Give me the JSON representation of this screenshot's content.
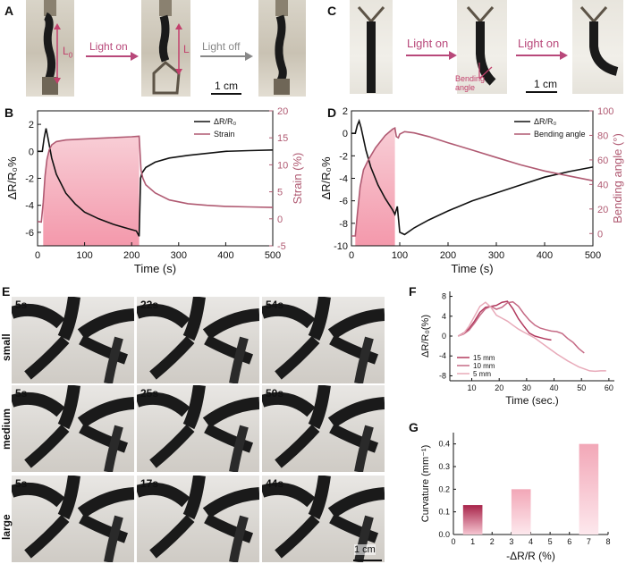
{
  "panels": {
    "A": {
      "label": "A",
      "length_label_initial": "L",
      "length_label_initial_sub": "0",
      "length_label_after": "L",
      "arrow_light_on": "Light on",
      "arrow_light_off": "Light off",
      "scale_bar": "1 cm"
    },
    "C": {
      "label": "C",
      "arrow_light_on_1": "Light on",
      "arrow_light_on_2": "Light on",
      "bending_label": "Bending angle",
      "scale_bar": "1 cm"
    },
    "E": {
      "label": "E",
      "rows": [
        {
          "size": "small",
          "times": [
            "5s",
            "22s",
            "54s"
          ]
        },
        {
          "size": "medium",
          "times": [
            "5s",
            "25s",
            "50s"
          ]
        },
        {
          "size": "large",
          "times": [
            "5s",
            "17s",
            "44s"
          ]
        }
      ],
      "scale_bar": "1 cm"
    },
    "B": {
      "label": "B"
    },
    "D": {
      "label": "D"
    },
    "F": {
      "label": "F"
    },
    "G": {
      "label": "G"
    }
  },
  "colors": {
    "pink_line": "#b05a72",
    "pink_fill": "#f4b8c4",
    "black": "#111111",
    "arrow_pink": "#b8487a",
    "arrow_gray": "#888888"
  },
  "chart_data": [
    {
      "id": "B",
      "type": "line",
      "xlabel": "Time (s)",
      "ylabel": "ΔR/R₀%",
      "y2label": "Strain (%)",
      "xlim": [
        0,
        500
      ],
      "ylim": [
        -7,
        3
      ],
      "y2lim": [
        -5,
        20
      ],
      "xticks": [
        "0",
        "100",
        "200",
        "300",
        "400",
        "500"
      ],
      "yticks": [
        "2",
        "0",
        "-2",
        "-4",
        "-6"
      ],
      "y2ticks": [
        "20",
        "15",
        "10",
        "5",
        "0",
        "-5"
      ],
      "light_on_interval": [
        12,
        218
      ],
      "legend": [
        "ΔR/R₀",
        "Strain"
      ],
      "series": [
        {
          "name": "ΔR/R₀",
          "axis": "left",
          "x": [
            0,
            10,
            14,
            18,
            22,
            30,
            40,
            60,
            80,
            100,
            130,
            160,
            190,
            210,
            216,
            219,
            222,
            230,
            250,
            280,
            320,
            360,
            400,
            450,
            500
          ],
          "y": [
            0,
            0,
            1.0,
            1.7,
            1.0,
            -0.5,
            -1.7,
            -3.1,
            -3.9,
            -4.5,
            -5.0,
            -5.4,
            -5.7,
            -5.9,
            -6.3,
            -2.0,
            -1.6,
            -1.2,
            -0.8,
            -0.5,
            -0.3,
            -0.15,
            0,
            0.05,
            0.1
          ]
        },
        {
          "name": "Strain",
          "axis": "right",
          "x": [
            0,
            8,
            12,
            16,
            20,
            25,
            30,
            40,
            60,
            100,
            150,
            200,
            216,
            220,
            224,
            230,
            250,
            280,
            320,
            360,
            400,
            450,
            500
          ],
          "y": [
            -0.5,
            -0.6,
            3,
            8,
            11,
            12.8,
            13.7,
            14.3,
            14.6,
            14.8,
            15.0,
            15.2,
            15.3,
            9,
            7.5,
            6.3,
            4.8,
            3.5,
            2.8,
            2.5,
            2.3,
            2.2,
            2.1
          ]
        }
      ]
    },
    {
      "id": "D",
      "type": "line",
      "xlabel": "Time (s)",
      "ylabel": "ΔR/R₀%",
      "y2label": "Bending angle (°)",
      "xlim": [
        0,
        500
      ],
      "ylim": [
        -10,
        2
      ],
      "y2lim": [
        -10,
        100
      ],
      "xticks": [
        "0",
        "100",
        "200",
        "300",
        "400",
        "500"
      ],
      "yticks": [
        "2",
        "0",
        "-2",
        "-4",
        "-6",
        "-8",
        "-10"
      ],
      "y2ticks": [
        "100",
        "80",
        "60",
        "40",
        "20",
        "0"
      ],
      "light_on_interval": [
        8,
        92
      ],
      "legend": [
        "ΔR/R₀",
        "Bending angle"
      ],
      "series": [
        {
          "name": "ΔR/R₀",
          "axis": "left",
          "x": [
            0,
            8,
            12,
            16,
            20,
            25,
            30,
            40,
            55,
            70,
            85,
            90,
            95,
            100,
            110,
            130,
            160,
            200,
            250,
            300,
            350,
            400,
            450,
            500
          ],
          "y": [
            0,
            0,
            0.7,
            1.1,
            0.5,
            -0.5,
            -1.5,
            -3.0,
            -4.6,
            -5.8,
            -6.8,
            -7.2,
            -6.5,
            -8.8,
            -9.0,
            -8.4,
            -7.7,
            -6.9,
            -6.0,
            -5.3,
            -4.6,
            -3.9,
            -3.4,
            -3.0
          ]
        },
        {
          "name": "Bending angle",
          "axis": "right",
          "x": [
            0,
            8,
            12,
            18,
            25,
            35,
            50,
            70,
            85,
            90,
            93,
            97,
            100,
            110,
            130,
            160,
            200,
            250,
            300,
            350,
            400,
            450,
            500
          ],
          "y": [
            -2,
            -2,
            15,
            38,
            52,
            60,
            70,
            80,
            85,
            86,
            79,
            78,
            81,
            83,
            82,
            79,
            74,
            68,
            62,
            56,
            51,
            47,
            43
          ]
        }
      ]
    },
    {
      "id": "F",
      "type": "line",
      "xlabel": "Time (sec.)",
      "ylabel": "ΔR/R₀(%)",
      "xlim": [
        2,
        62
      ],
      "ylim": [
        -9,
        9
      ],
      "xticks": [
        "10",
        "20",
        "30",
        "40",
        "50",
        "60"
      ],
      "yticks": [
        "8",
        "4",
        "0",
        "-4",
        "-8"
      ],
      "legend": [
        "15 mm",
        "10 mm",
        "5 mm"
      ],
      "series": [
        {
          "name": "15 mm",
          "x": [
            5,
            7,
            9,
            11,
            13,
            15,
            17,
            19,
            21,
            23,
            25,
            27,
            29,
            31,
            33,
            35,
            37,
            39
          ],
          "y": [
            0,
            0.6,
            1.5,
            3,
            4.8,
            5.8,
            6.0,
            6.2,
            6.8,
            7.0,
            5.5,
            3.5,
            2.0,
            0.6,
            0.0,
            -0.3,
            -0.6,
            -0.8
          ]
        },
        {
          "name": "10 mm",
          "x": [
            5,
            7,
            9,
            11,
            13,
            15,
            17,
            19,
            21,
            23,
            25,
            27,
            29,
            31,
            33,
            35,
            37,
            39,
            41,
            43,
            45,
            47,
            49,
            51
          ],
          "y": [
            0,
            0.4,
            1.2,
            2.6,
            4.2,
            5.5,
            6.0,
            5.4,
            5.8,
            6.7,
            6.9,
            6.0,
            4.5,
            3.2,
            2.2,
            1.6,
            1.3,
            1.0,
            0.9,
            0.5,
            -0.5,
            -1.3,
            -2.5,
            -3.4
          ]
        },
        {
          "name": "5 mm",
          "x": [
            5,
            7,
            9,
            11,
            13,
            15,
            17,
            19,
            21,
            23,
            25,
            27,
            29,
            31,
            33,
            35,
            37,
            39,
            41,
            43,
            45,
            47,
            49,
            51,
            53,
            55,
            57,
            59
          ],
          "y": [
            0,
            0.5,
            2,
            4,
            6,
            6.8,
            5.8,
            4.2,
            3.6,
            3.0,
            2.2,
            1.4,
            0.8,
            0.2,
            -0.4,
            -1.2,
            -2.0,
            -2.8,
            -3.6,
            -4.3,
            -5.0,
            -5.6,
            -6.2,
            -6.6,
            -7.0,
            -7.1,
            -7.0,
            -7.0
          ]
        }
      ]
    },
    {
      "id": "G",
      "type": "bar",
      "xlabel": "-ΔR/R (%)",
      "ylabel": "Curvature (mm⁻¹)",
      "xlim": [
        0,
        8
      ],
      "ylim": [
        0,
        0.45
      ],
      "xticks": [
        "0",
        "1",
        "2",
        "3",
        "4",
        "5",
        "6",
        "7",
        "8"
      ],
      "yticks": [
        "0.0",
        "0.1",
        "0.2",
        "0.3",
        "0.4"
      ],
      "bars": [
        {
          "x": 1,
          "value": 0.13
        },
        {
          "x": 3.5,
          "value": 0.2
        },
        {
          "x": 7,
          "value": 0.4
        }
      ]
    }
  ]
}
